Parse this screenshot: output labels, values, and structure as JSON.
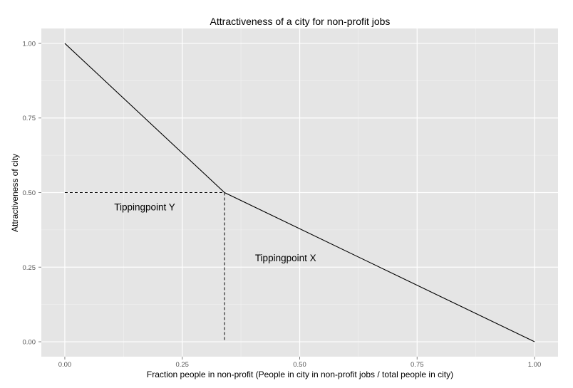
{
  "chart_data": {
    "type": "line",
    "title": "Attractiveness of a city for non-profit jobs",
    "xlabel": "Fraction people in non-profit (People in city in non-profit jobs / total people in city)",
    "ylabel": "Attractiveness of city",
    "xlim": [
      -0.05,
      1.05
    ],
    "ylim": [
      -0.05,
      1.05
    ],
    "x_ticks": [
      0,
      0.25,
      0.5,
      0.75,
      1
    ],
    "x_tick_labels": [
      "0.00",
      "0.25",
      "0.50",
      "0.75",
      "1.00"
    ],
    "y_ticks": [
      0,
      0.25,
      0.5,
      0.75,
      1
    ],
    "y_tick_labels": [
      "0.00",
      "0.25",
      "0.50",
      "0.75",
      "1.00"
    ],
    "grid": true,
    "series": [
      {
        "x": [
          0,
          0.34,
          1
        ],
        "y": [
          1,
          0.5,
          0
        ]
      }
    ],
    "reference_lines": [
      {
        "style": "dashed",
        "x": [
          0,
          0.34
        ],
        "y": [
          0.5,
          0.5
        ]
      },
      {
        "style": "dashed",
        "x": [
          0.34,
          0.34
        ],
        "y": [
          0.5,
          0
        ]
      }
    ],
    "annotations": [
      {
        "text": "Tippingpoint Y",
        "x": 0.17,
        "y": 0.44
      },
      {
        "text": "Tippingpoint X",
        "x": 0.47,
        "y": 0.27
      }
    ],
    "colors": {
      "panel_background": "#e5e5e5",
      "grid_major": "#ffffff",
      "grid_minor": "#f2f2f2",
      "line": "#000000"
    }
  }
}
